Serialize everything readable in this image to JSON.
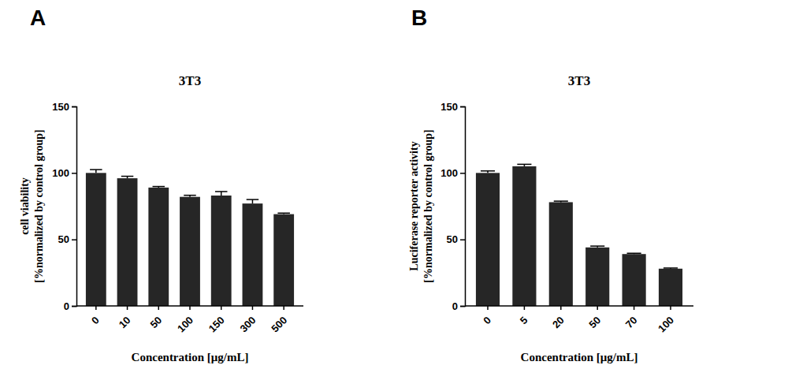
{
  "chart_data": [
    {
      "type": "bar",
      "annotation": "A",
      "title": "3T3",
      "y_label": [
        "cell viability",
        "[%normalized by control group]"
      ],
      "x_label": "Concentration [μg/mL]",
      "categories": [
        "0",
        "10",
        "50",
        "100",
        "150",
        "300",
        "500"
      ],
      "values": [
        100,
        96,
        89,
        82,
        83,
        77,
        69
      ],
      "errors": [
        2.5,
        1.5,
        0.8,
        1.2,
        3,
        3,
        0.8
      ],
      "color": "#262626",
      "ylim": [
        0,
        150
      ],
      "yticks": [
        0,
        50,
        100,
        150
      ]
    },
    {
      "type": "bar",
      "annotation": "B",
      "title": "3T3",
      "y_label": [
        "Luciferase reporter activity",
        "[%normalized by control group]"
      ],
      "x_label": "Concentration [μg/mL]",
      "categories": [
        "0",
        "5",
        "20",
        "50",
        "70",
        "100"
      ],
      "values": [
        100,
        105,
        78,
        44,
        39,
        28
      ],
      "errors": [
        1.5,
        1.5,
        0.8,
        1,
        0.6,
        0.5
      ],
      "color": "#262626",
      "ylim": [
        0,
        150
      ],
      "yticks": [
        0,
        50,
        100,
        150
      ]
    }
  ]
}
